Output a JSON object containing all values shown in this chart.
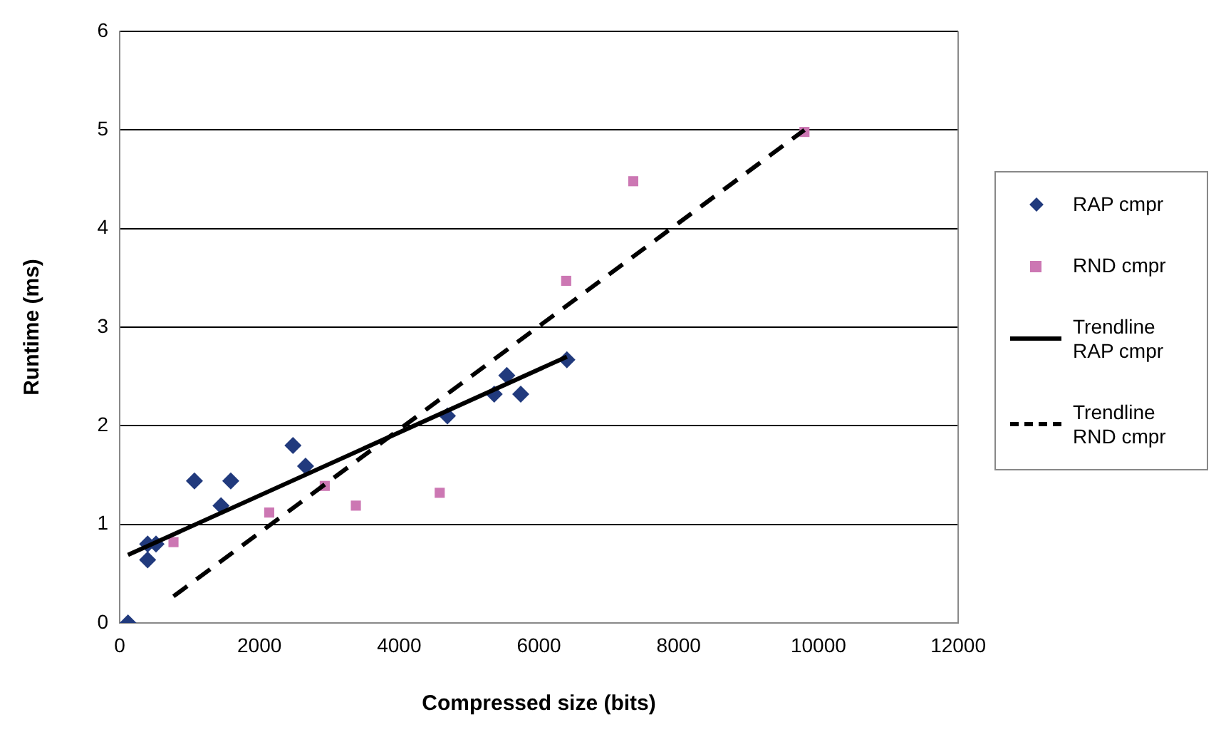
{
  "chart_data": {
    "type": "scatter",
    "xlabel": "Compressed size (bits)",
    "ylabel": "Runtime (ms)",
    "xlim": [
      0,
      12000
    ],
    "xticks": [
      0,
      2000,
      4000,
      6000,
      8000,
      10000,
      12000
    ],
    "ylim": [
      0,
      6
    ],
    "yticks": [
      0,
      1,
      2,
      3,
      4,
      5,
      6
    ],
    "grid": "y",
    "legend": "right",
    "series": [
      {
        "name": "RAP cmpr",
        "color": "#213a7d",
        "marker": "diamond",
        "x": [
          119,
          400,
          520,
          400,
          1070,
          1450,
          1590,
          2480,
          2660,
          4690,
          5360,
          5540,
          5740,
          6400
        ],
        "values": [
          0,
          0.8,
          0.8,
          0.64,
          1.44,
          1.19,
          1.44,
          1.8,
          1.59,
          2.1,
          2.32,
          2.51,
          2.32,
          2.67
        ]
      },
      {
        "name": "RND cmpr",
        "color": "#cc77b3",
        "marker": "square",
        "x": [
          770,
          2140,
          2935,
          3380,
          4580,
          6390,
          7350,
          9800
        ],
        "values": [
          0.82,
          1.12,
          1.39,
          1.19,
          1.32,
          3.47,
          4.48,
          4.98
        ]
      },
      {
        "name": "Trendline RAP cmpr",
        "type": "line",
        "color": "#000000",
        "marker": "none",
        "line_style": "solid",
        "x": [
          119,
          6400
        ],
        "values": [
          0.69,
          2.7
        ]
      },
      {
        "name": "Trendline RND cmpr",
        "type": "line",
        "color": "#000000",
        "marker": "none",
        "line_style": "dashed",
        "x": [
          770,
          9800
        ],
        "values": [
          0.27,
          5.0
        ]
      }
    ]
  }
}
